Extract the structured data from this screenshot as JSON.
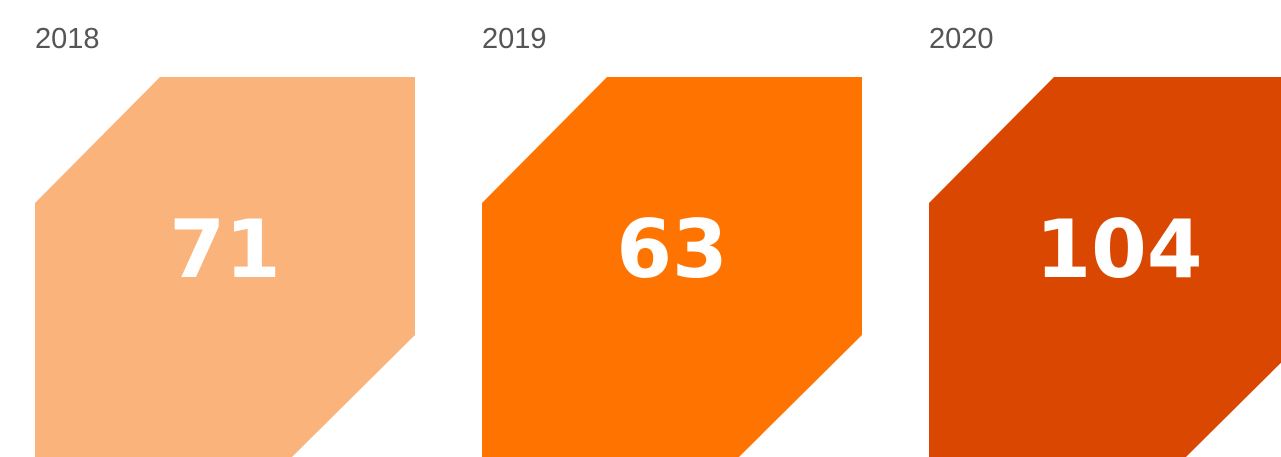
{
  "cards": [
    {
      "year": "2018",
      "value": 71,
      "color": "#f9b37b"
    },
    {
      "year": "2019",
      "value": 63,
      "color": "#ff7300"
    },
    {
      "year": "2020",
      "value": 104,
      "color": "#d94700"
    }
  ]
}
